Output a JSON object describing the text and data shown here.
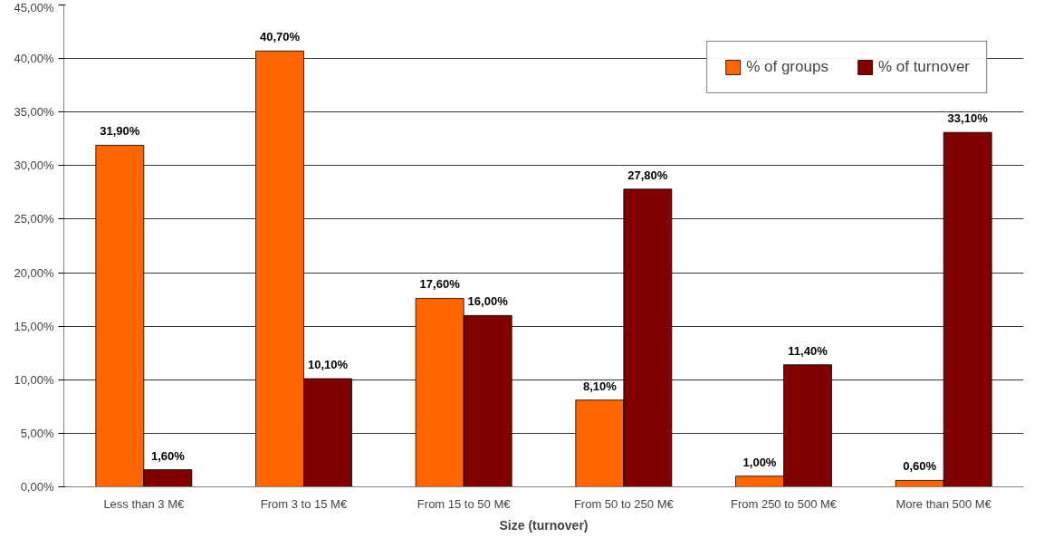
{
  "chart_data": {
    "type": "bar",
    "xlabel": "Size (turnover)",
    "categories": [
      "Less than 3 M€",
      "From 3 to 15 M€",
      "From 15 to 50 M€",
      "From 50 to 250 M€",
      "From 250 to 500 M€",
      "More than 500 M€"
    ],
    "series": [
      {
        "name": "% of groups",
        "color": "#ff6600",
        "values": [
          31.9,
          40.7,
          17.6,
          8.1,
          1.0,
          0.6
        ],
        "value_labels": [
          "31,90%",
          "40,70%",
          "17,60%",
          "8,10%",
          "1,00%",
          "0,60%"
        ]
      },
      {
        "name": "% of turnover",
        "color": "#800000",
        "values": [
          1.6,
          10.1,
          16.0,
          27.8,
          11.4,
          33.1
        ],
        "value_labels": [
          "1,60%",
          "10,10%",
          "16,00%",
          "27,80%",
          "11,40%",
          "33,10%"
        ]
      }
    ],
    "ylim": [
      0,
      45
    ],
    "yticks": [
      {
        "value": 0,
        "label": "0,00%"
      },
      {
        "value": 5,
        "label": "5,00%"
      },
      {
        "value": 10,
        "label": "10,00%"
      },
      {
        "value": 15,
        "label": "15,00%"
      },
      {
        "value": 20,
        "label": "20,00%"
      },
      {
        "value": 25,
        "label": "25,00%"
      },
      {
        "value": 30,
        "label": "30,00%"
      },
      {
        "value": 35,
        "label": "35,00%"
      },
      {
        "value": 40,
        "label": "40,00%"
      },
      {
        "value": 45,
        "label": "45,00%"
      }
    ],
    "grid": "y",
    "legend": "top right"
  }
}
